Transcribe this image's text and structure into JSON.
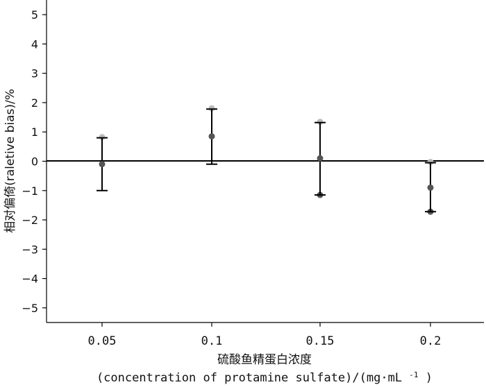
{
  "chart_data": {
    "type": "scatter",
    "title": "",
    "x": [
      "0.05",
      "0.1",
      "0.15",
      "0.2"
    ],
    "series": [
      {
        "values": [
          -0.1,
          0.85,
          0.1,
          -0.9
        ]
      }
    ],
    "error_bars": {
      "upper": [
        0.8,
        1.78,
        1.32,
        -0.05
      ],
      "lower": [
        -1.0,
        -0.1,
        -1.15,
        -1.72
      ]
    },
    "ylim": [
      -5.5,
      5.5
    ],
    "yticks": [
      "5",
      "4",
      "3",
      "2",
      "1",
      "0",
      "-1",
      "-2",
      "-3",
      "-4",
      "-5"
    ],
    "ytick_values": [
      5,
      4,
      3,
      2,
      1,
      0,
      -1,
      -2,
      -3,
      -4,
      -5
    ],
    "xlabel_line1": "硫酸鱼精蛋白浓度",
    "xlabel_line2": "(concentration of protamine sulfate)/(mg·mL",
    "xlabel_sup": "-1",
    "xlabel_end": ")",
    "ylabel": "相对偏倚(raletive bias)/%",
    "grid": false,
    "zero_line": true,
    "colors": {
      "point": "#555555",
      "cap_light": "#bbbbbb",
      "bar": "#000000"
    }
  }
}
